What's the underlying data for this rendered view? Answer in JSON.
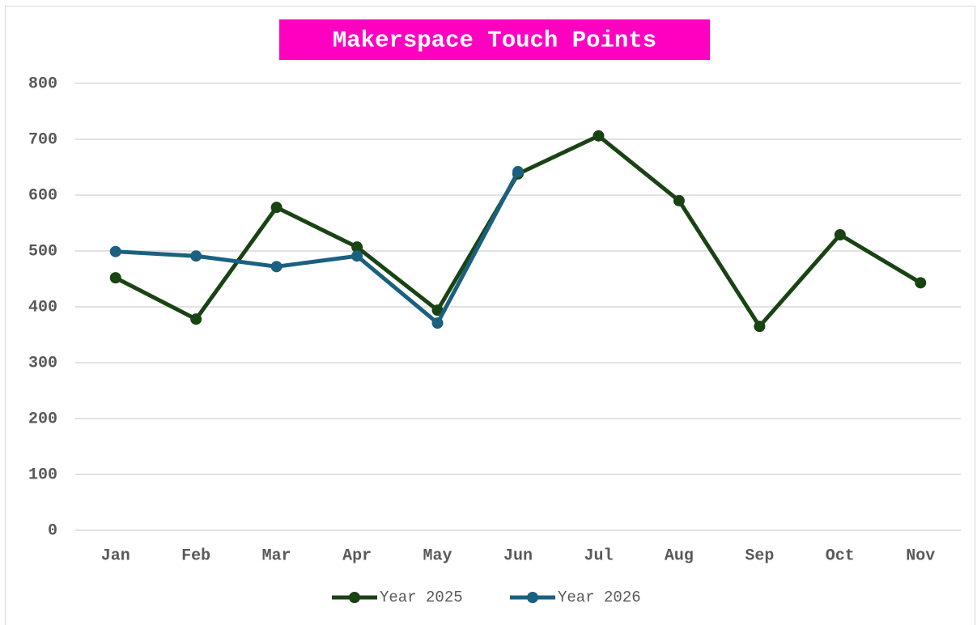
{
  "chart_data": {
    "type": "line",
    "title": "Makerspace Touch Points",
    "categories": [
      "Jan",
      "Feb",
      "Mar",
      "Apr",
      "May",
      "Jun",
      "Jul",
      "Aug",
      "Sep",
      "Oct",
      "Nov"
    ],
    "series": [
      {
        "name": "Year 2025",
        "color": "#1a4314",
        "values": [
          452,
          378,
          578,
          507,
          394,
          638,
          706,
          590,
          365,
          529,
          443
        ]
      },
      {
        "name": "Year 2026",
        "color": "#1b6080",
        "values": [
          499,
          491,
          472,
          491,
          371,
          642,
          null,
          null,
          null,
          null,
          null
        ]
      }
    ],
    "ylim": [
      0,
      800
    ],
    "yticks": [
      0,
      100,
      200,
      300,
      400,
      500,
      600,
      700,
      800
    ],
    "grid": true,
    "legend": "bottom"
  }
}
